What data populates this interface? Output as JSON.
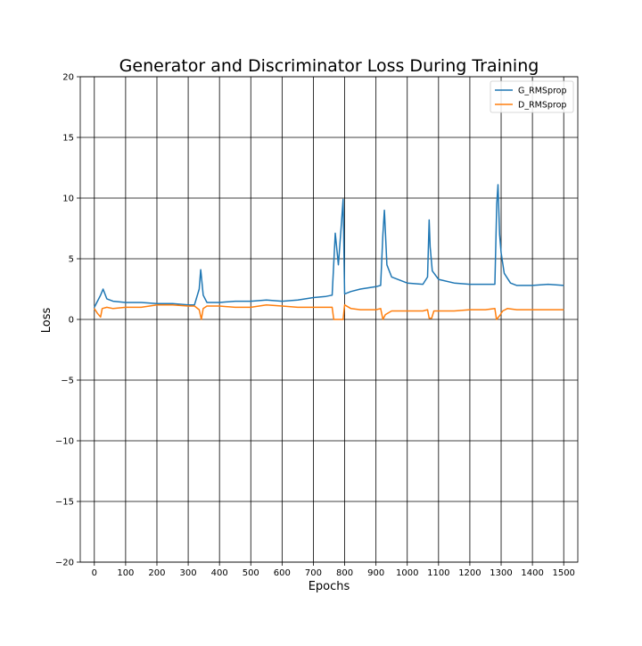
{
  "chart_data": {
    "type": "line",
    "title": "Generator and Discriminator Loss During Training",
    "xlabel": "Epochs",
    "ylabel": "Loss",
    "xlim": [
      -45,
      1545
    ],
    "ylim": [
      -20,
      20
    ],
    "x_ticks": [
      0,
      100,
      200,
      300,
      400,
      500,
      600,
      700,
      800,
      900,
      1000,
      1100,
      1200,
      1300,
      1400,
      1500
    ],
    "y_ticks": [
      -20,
      -15,
      -10,
      -5,
      0,
      5,
      10,
      15,
      20
    ],
    "y_tick_labels": [
      "−20",
      "−15",
      "−10",
      "−5",
      "0",
      "5",
      "10",
      "15",
      "20"
    ],
    "grid": true,
    "legend_position": "top-right",
    "series": [
      {
        "name": "G_RMSprop",
        "color": "#1f77b4",
        "x": [
          0,
          10,
          20,
          28,
          40,
          60,
          100,
          150,
          200,
          250,
          300,
          320,
          335,
          340,
          348,
          360,
          400,
          450,
          500,
          550,
          600,
          650,
          700,
          740,
          760,
          770,
          780,
          790,
          795,
          800,
          820,
          850,
          900,
          915,
          922,
          927,
          935,
          950,
          1000,
          1050,
          1065,
          1070,
          1073,
          1080,
          1100,
          1150,
          1200,
          1250,
          1280,
          1286,
          1290,
          1295,
          1300,
          1310,
          1330,
          1350,
          1400,
          1450,
          1500
        ],
        "values": [
          1.0,
          1.5,
          2.0,
          2.5,
          1.7,
          1.5,
          1.4,
          1.4,
          1.3,
          1.3,
          1.2,
          1.2,
          2.5,
          4.1,
          2.0,
          1.4,
          1.4,
          1.5,
          1.5,
          1.6,
          1.5,
          1.6,
          1.8,
          1.9,
          2.0,
          7.1,
          4.5,
          8.0,
          9.9,
          2.1,
          2.3,
          2.5,
          2.7,
          2.8,
          7.0,
          9.0,
          4.5,
          3.5,
          3.0,
          2.9,
          3.5,
          8.2,
          6.0,
          4.0,
          3.3,
          3.0,
          2.9,
          2.9,
          2.9,
          9.5,
          11.1,
          7.0,
          5.5,
          3.8,
          3.0,
          2.8,
          2.8,
          2.9,
          2.8
        ]
      },
      {
        "name": "D_RMSprop",
        "color": "#ff7f0e",
        "x": [
          0,
          10,
          20,
          25,
          40,
          60,
          100,
          150,
          200,
          250,
          300,
          320,
          335,
          342,
          348,
          360,
          400,
          450,
          500,
          550,
          600,
          650,
          700,
          740,
          760,
          765,
          790,
          795,
          800,
          820,
          850,
          900,
          915,
          922,
          930,
          950,
          1000,
          1050,
          1065,
          1070,
          1078,
          1085,
          1100,
          1150,
          1200,
          1250,
          1280,
          1285,
          1295,
          1305,
          1320,
          1350,
          1400,
          1450,
          1500
        ],
        "values": [
          0.9,
          0.5,
          0.2,
          0.9,
          1.0,
          0.9,
          1.0,
          1.0,
          1.2,
          1.2,
          1.1,
          1.1,
          0.8,
          0.0,
          0.9,
          1.1,
          1.1,
          1.0,
          1.0,
          1.2,
          1.1,
          1.0,
          1.0,
          1.0,
          1.0,
          0.0,
          0.0,
          0.0,
          1.2,
          0.9,
          0.8,
          0.8,
          0.9,
          0.0,
          0.4,
          0.7,
          0.7,
          0.7,
          0.8,
          0.1,
          0.1,
          0.7,
          0.7,
          0.7,
          0.8,
          0.8,
          0.9,
          0.0,
          0.3,
          0.7,
          0.9,
          0.8,
          0.8,
          0.8,
          0.8
        ]
      }
    ]
  }
}
